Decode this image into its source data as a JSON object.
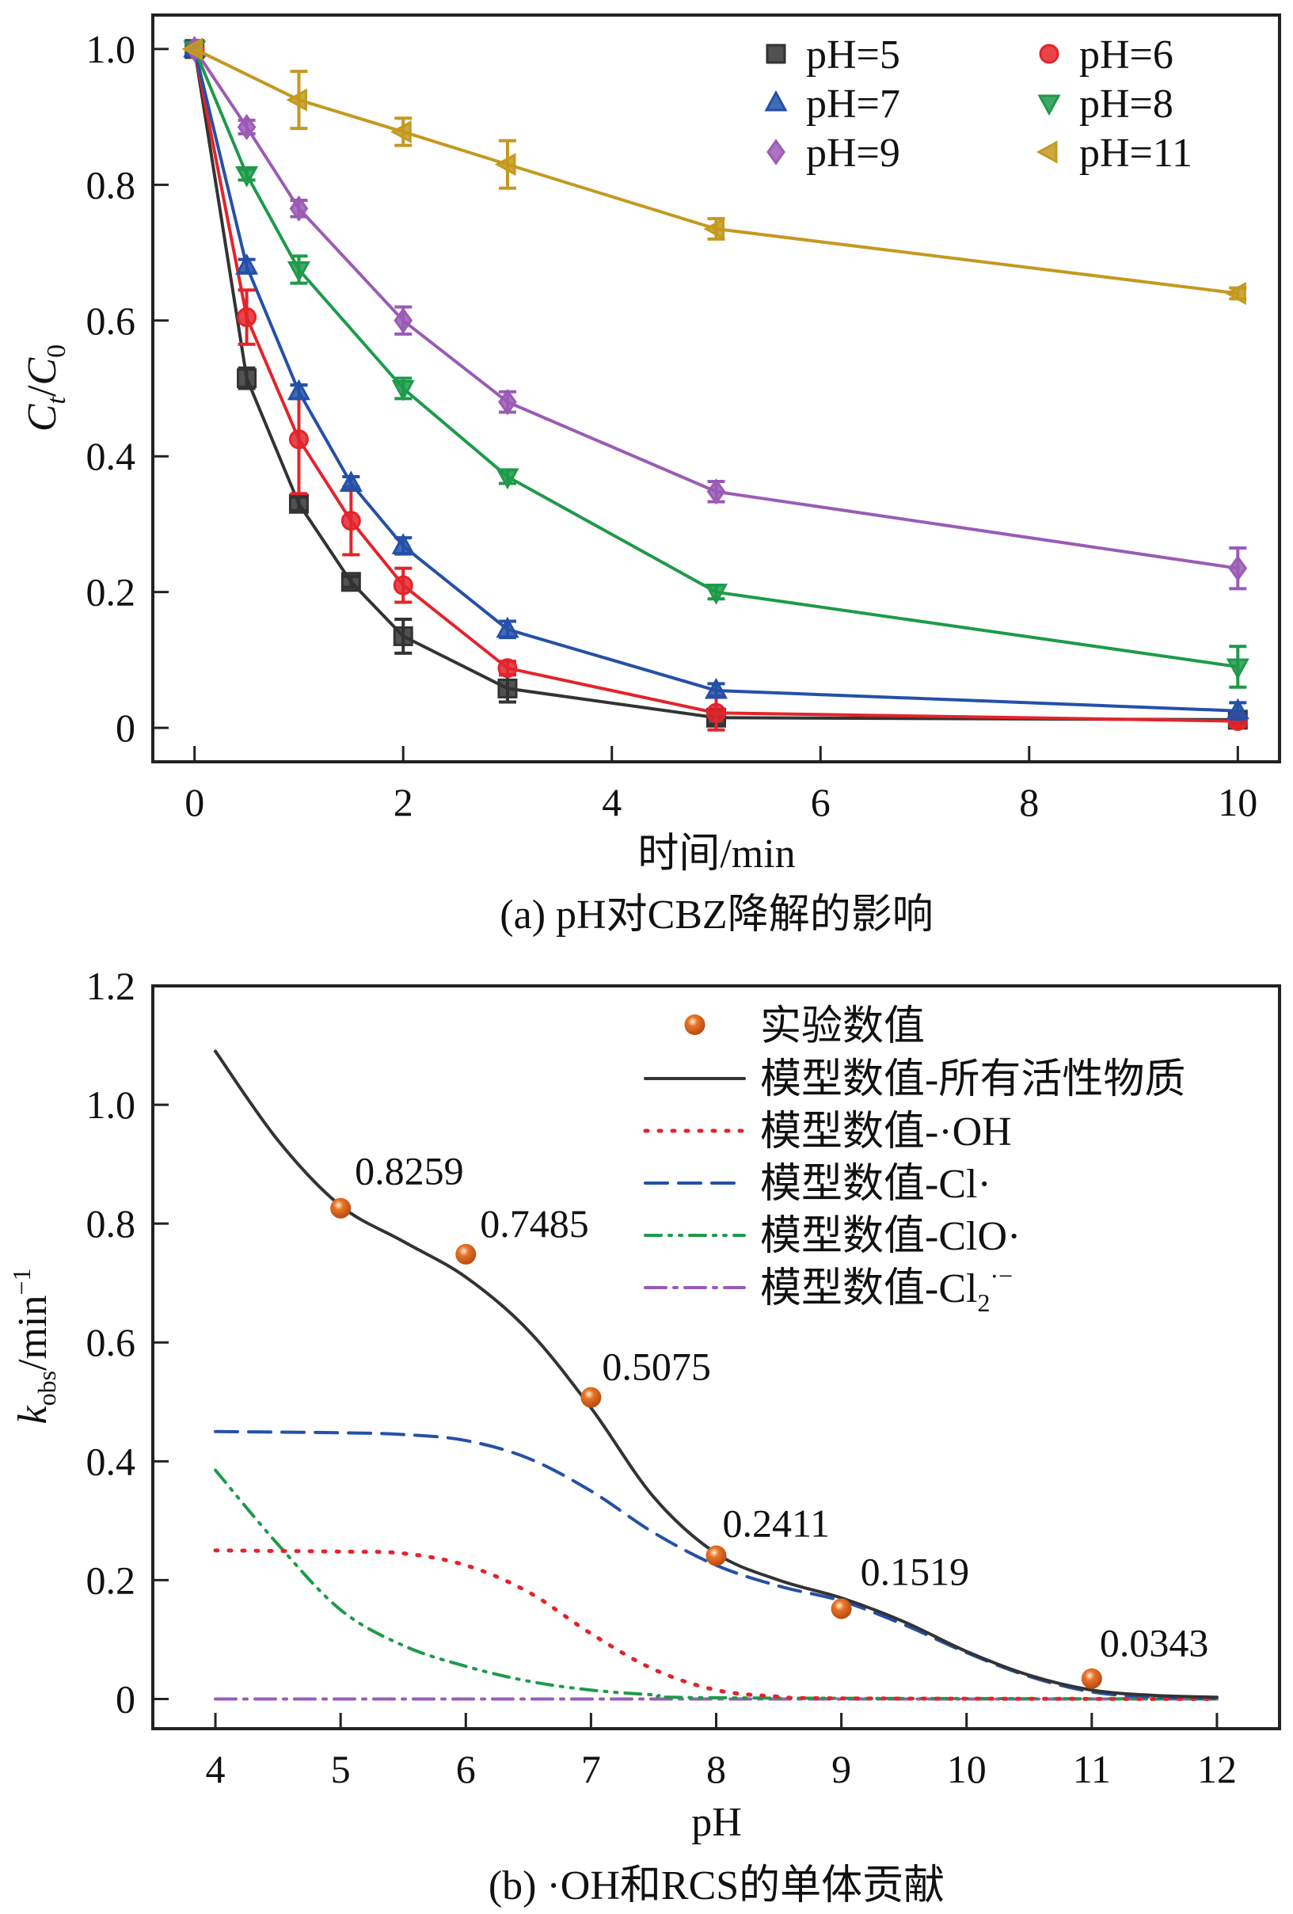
{
  "chart_data": [
    {
      "type": "line",
      "title": "",
      "caption": "(a) pH对CBZ降解的影响",
      "xlabel": "时间/min",
      "ylabel": {
        "main1": "C",
        "sub1": "t",
        "slash": "/",
        "main2": "C",
        "sub2": "0"
      },
      "xlim": [
        -0.4,
        10.4
      ],
      "ylim": [
        -0.05,
        1.05
      ],
      "xticks": [
        0,
        2,
        4,
        6,
        8,
        10
      ],
      "xtick_labels": [
        "0",
        "2",
        "4",
        "6",
        "8",
        "10"
      ],
      "yticks": [
        0,
        0.2,
        0.4,
        0.6,
        0.8,
        1.0
      ],
      "ytick_labels": [
        "0",
        "0.2",
        "0.4",
        "0.6",
        "0.8",
        "1.0"
      ],
      "legend_position": "top-right",
      "series": [
        {
          "name": "pH=5",
          "color": "#333333",
          "marker": "square",
          "x": [
            0,
            0.5,
            1,
            1.5,
            2,
            3,
            5,
            10
          ],
          "y": [
            1.0,
            0.515,
            0.33,
            0.215,
            0.135,
            0.058,
            0.015,
            0.012
          ],
          "err": [
            0,
            0.015,
            0.01,
            0.008,
            0.025,
            0.02,
            0.01,
            0.005
          ]
        },
        {
          "name": "pH=6",
          "color": "#e3242b",
          "marker": "circle",
          "x": [
            0,
            0.5,
            1,
            1.5,
            2,
            3,
            5,
            10
          ],
          "y": [
            1.0,
            0.605,
            0.425,
            0.305,
            0.21,
            0.088,
            0.022,
            0.01
          ],
          "err": [
            0,
            0.04,
            0.08,
            0.05,
            0.025,
            0.01,
            0.025,
            0.008
          ]
        },
        {
          "name": "pH=7",
          "color": "#2450a8",
          "marker": "triangle-up",
          "x": [
            0,
            0.5,
            1,
            1.5,
            2,
            3,
            5,
            10
          ],
          "y": [
            1.0,
            0.68,
            0.495,
            0.36,
            0.268,
            0.145,
            0.055,
            0.025
          ],
          "err": [
            0,
            0.01,
            0.01,
            0.01,
            0.012,
            0.012,
            0.01,
            0.012
          ]
        },
        {
          "name": "pH=8",
          "color": "#1e9a4a",
          "marker": "triangle-down",
          "x": [
            0,
            0.5,
            1,
            2,
            3,
            5,
            10
          ],
          "y": [
            1.0,
            0.815,
            0.675,
            0.5,
            0.37,
            0.2,
            0.09
          ],
          "err": [
            0,
            0.008,
            0.02,
            0.015,
            0.01,
            0.01,
            0.03
          ]
        },
        {
          "name": "pH=9",
          "color": "#9a5bb5",
          "marker": "diamond",
          "x": [
            0,
            0.5,
            1,
            2,
            3,
            5,
            10
          ],
          "y": [
            1.0,
            0.885,
            0.765,
            0.6,
            0.48,
            0.348,
            0.235
          ],
          "err": [
            0,
            0.01,
            0.012,
            0.02,
            0.015,
            0.015,
            0.03
          ]
        },
        {
          "name": "pH=11",
          "color": "#c4991f",
          "marker": "triangle-left",
          "x": [
            0,
            1,
            2,
            3,
            5,
            10
          ],
          "y": [
            1.0,
            0.925,
            0.878,
            0.83,
            0.735,
            0.64
          ],
          "err": [
            0,
            0.042,
            0.02,
            0.035,
            0.015,
            0.008
          ]
        }
      ]
    },
    {
      "type": "line",
      "title": "",
      "caption": "(b) ·OH和RCS的单体贡献",
      "xlabel": "pH",
      "ylabel": {
        "main": "k",
        "sub": "obs",
        "unit": "/min",
        "sup": "−1"
      },
      "xlim": [
        3.5,
        12.5
      ],
      "ylim": [
        -0.05,
        1.2
      ],
      "xticks": [
        4,
        5,
        6,
        7,
        8,
        9,
        10,
        11,
        12
      ],
      "xtick_labels": [
        "4",
        "5",
        "6",
        "7",
        "8",
        "9",
        "10",
        "11",
        "12"
      ],
      "yticks": [
        0,
        0.2,
        0.4,
        0.6,
        0.8,
        1.0,
        1.2
      ],
      "ytick_labels": [
        "0",
        "0.2",
        "0.4",
        "0.6",
        "0.8",
        "1.0",
        "1.2"
      ],
      "legend_position": "top-right",
      "points": {
        "name": "实验数值",
        "color": "#e8742a",
        "x": [
          5,
          6,
          7,
          8,
          9,
          11
        ],
        "y": [
          0.8259,
          0.7485,
          0.5075,
          0.2411,
          0.1519,
          0.0343
        ],
        "labels": [
          "0.8259",
          "0.7485",
          "0.5075",
          "0.2411",
          "0.1519",
          "0.0343"
        ]
      },
      "series": [
        {
          "name": "模型数值-所有活性物质",
          "color": "#333333",
          "style": "solid",
          "x": [
            4,
            4.5,
            5,
            5.5,
            6,
            6.5,
            7,
            7.5,
            8,
            8.5,
            9,
            9.5,
            10,
            10.5,
            11,
            11.5,
            12
          ],
          "y": [
            1.09,
            0.94,
            0.83,
            0.77,
            0.71,
            0.62,
            0.49,
            0.34,
            0.245,
            0.2,
            0.17,
            0.13,
            0.08,
            0.04,
            0.015,
            0.006,
            0.003
          ]
        },
        {
          "name": "模型数值-·OH",
          "color": "#e3242b",
          "style": "dotted",
          "x": [
            4,
            5,
            5.5,
            6,
            6.5,
            7,
            7.5,
            8,
            8.5,
            9,
            12
          ],
          "y": [
            0.25,
            0.248,
            0.245,
            0.225,
            0.18,
            0.11,
            0.05,
            0.015,
            0.004,
            0.001,
            0
          ]
        },
        {
          "name": "模型数值-Cl·",
          "color": "#2450a8",
          "style": "dashed",
          "x": [
            4,
            5,
            5.5,
            6,
            6.5,
            7,
            7.5,
            8,
            8.5,
            9,
            9.5,
            10,
            10.5,
            11,
            11.5,
            12
          ],
          "y": [
            0.45,
            0.448,
            0.445,
            0.435,
            0.405,
            0.35,
            0.28,
            0.225,
            0.19,
            0.165,
            0.125,
            0.078,
            0.038,
            0.012,
            0.003,
            0.001
          ]
        },
        {
          "name": "模型数值-ClO·",
          "color": "#1e9a4a",
          "style": "dashdotdot",
          "x": [
            4,
            4.5,
            5,
            5.5,
            6,
            6.5,
            7,
            7.5,
            8,
            12
          ],
          "y": [
            0.385,
            0.26,
            0.15,
            0.09,
            0.055,
            0.03,
            0.015,
            0.007,
            0.002,
            0
          ]
        },
        {
          "name": "模型数值-Cl",
          "name_sub": "2",
          "name_sup": "·−",
          "color": "#9a5bb5",
          "style": "dashdot",
          "x": [
            4,
            12
          ],
          "y": [
            0,
            0
          ]
        }
      ]
    }
  ]
}
